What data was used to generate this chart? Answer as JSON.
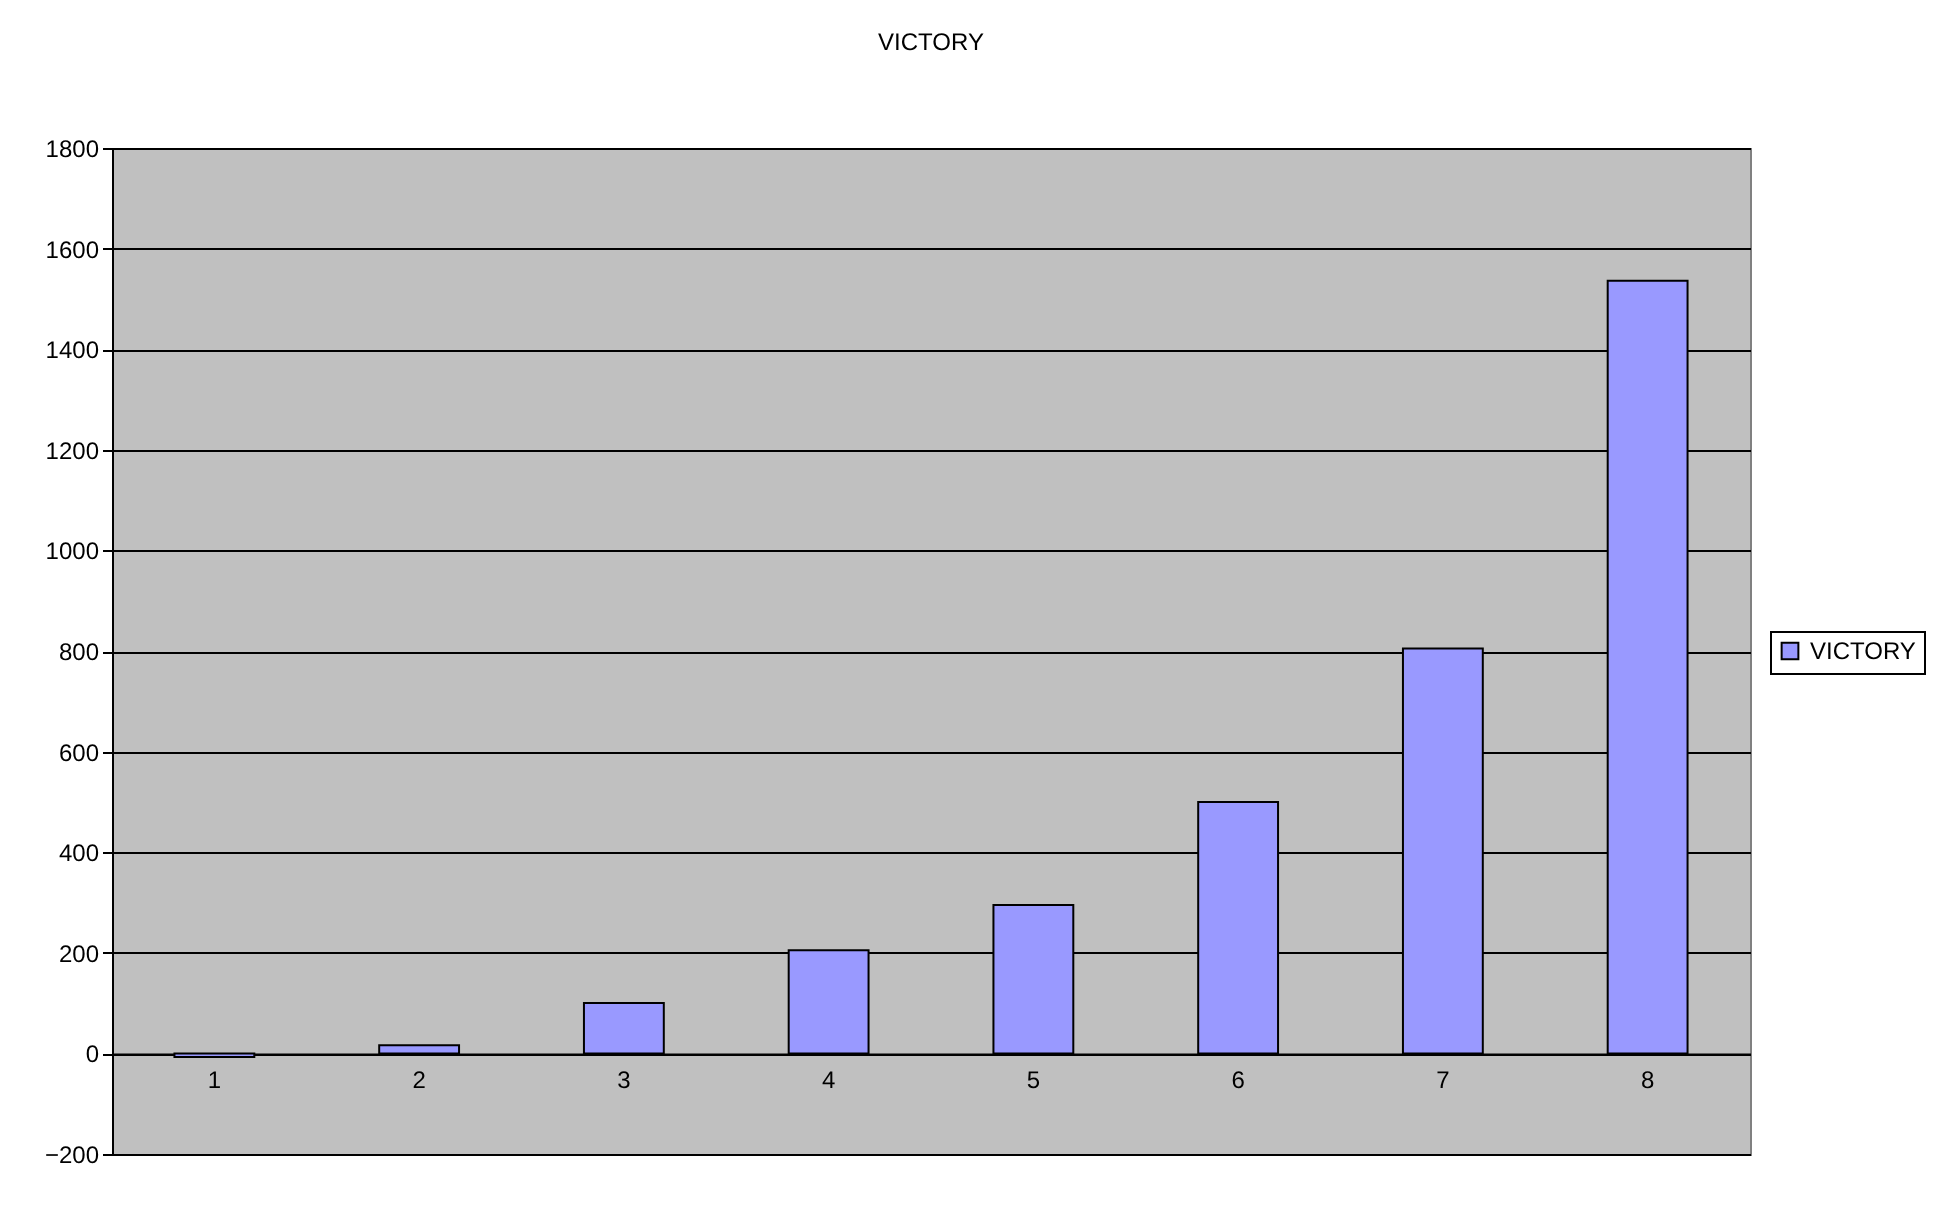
{
  "chart_data": {
    "type": "bar",
    "title": "VICTORY",
    "categories": [
      "1",
      "2",
      "3",
      "4",
      "5",
      "6",
      "7",
      "8"
    ],
    "series": [
      {
        "name": "VICTORY",
        "color": "#9999ff",
        "values": [
          -7,
          16,
          100,
          205,
          295,
          500,
          805,
          1536
        ]
      }
    ],
    "ylim": [
      -200,
      1800
    ],
    "yticks": [
      -200,
      0,
      200,
      400,
      600,
      800,
      1000,
      1200,
      1400,
      1600,
      1800
    ],
    "grid": "y",
    "legend": "right"
  }
}
